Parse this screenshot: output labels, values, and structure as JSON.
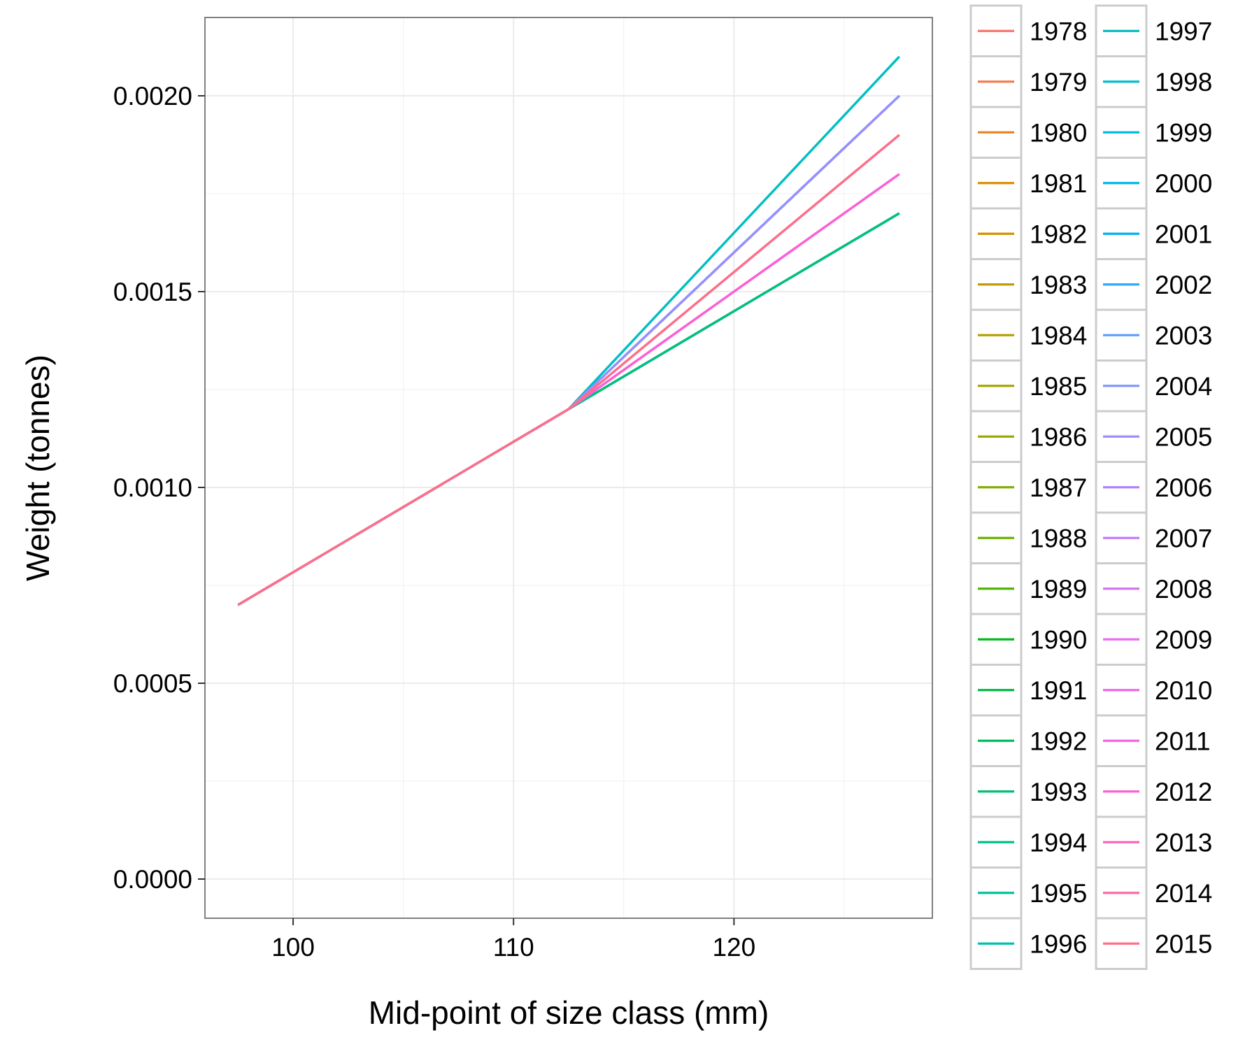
{
  "chart_data": {
    "type": "line",
    "title": "",
    "xlabel": "Mid-point of size class (mm)",
    "ylabel": "Weight (tonnes)",
    "xlim": [
      96,
      129
    ],
    "ylim": [
      -0.0001,
      0.0022
    ],
    "xticks": [
      100,
      110,
      120
    ],
    "xtick_labels": [
      "100",
      "110",
      "120"
    ],
    "yticks": [
      0.0,
      0.0005,
      0.001,
      0.0015,
      0.002
    ],
    "ytick_labels": [
      "0.0000",
      "0.0005",
      "0.0010",
      "0.0015",
      "0.0020"
    ],
    "grid": true,
    "legend_position": "right, two columns",
    "series": [
      {
        "name": "1978",
        "color": "#F8766D",
        "x": [
          97.5,
          112.5,
          127.5
        ],
        "y": [
          0.0007,
          0.0012,
          0.0019
        ]
      },
      {
        "name": "1979",
        "color": "#F17D50",
        "x": [
          97.5,
          112.5,
          127.5
        ],
        "y": [
          0.0007,
          0.0012,
          0.0017
        ]
      },
      {
        "name": "1980",
        "color": "#E98428",
        "x": [
          97.5,
          112.5,
          127.5
        ],
        "y": [
          0.0007,
          0.0012,
          0.0017
        ]
      },
      {
        "name": "1981",
        "color": "#DF8B00",
        "x": [
          97.5,
          112.5,
          127.5
        ],
        "y": [
          0.0007,
          0.0012,
          0.0017
        ]
      },
      {
        "name": "1982",
        "color": "#D39200",
        "x": [
          97.5,
          112.5,
          127.5
        ],
        "y": [
          0.0007,
          0.0012,
          0.0017
        ]
      },
      {
        "name": "1983",
        "color": "#C69800",
        "x": [
          97.5,
          112.5,
          127.5
        ],
        "y": [
          0.0007,
          0.0012,
          0.0017
        ]
      },
      {
        "name": "1984",
        "color": "#B79F00",
        "x": [
          97.5,
          112.5,
          127.5
        ],
        "y": [
          0.0007,
          0.0012,
          0.0017
        ]
      },
      {
        "name": "1985",
        "color": "#A7A400",
        "x": [
          97.5,
          112.5,
          127.5
        ],
        "y": [
          0.0007,
          0.0012,
          0.0017
        ]
      },
      {
        "name": "1986",
        "color": "#96A900",
        "x": [
          97.5,
          112.5,
          127.5
        ],
        "y": [
          0.0007,
          0.0012,
          0.0017
        ]
      },
      {
        "name": "1987",
        "color": "#82AD00",
        "x": [
          97.5,
          112.5,
          127.5
        ],
        "y": [
          0.0007,
          0.0012,
          0.0017
        ]
      },
      {
        "name": "1988",
        "color": "#6BB100",
        "x": [
          97.5,
          112.5,
          127.5
        ],
        "y": [
          0.0007,
          0.0012,
          0.0017
        ]
      },
      {
        "name": "1989",
        "color": "#4DB400",
        "x": [
          97.5,
          112.5,
          127.5
        ],
        "y": [
          0.0007,
          0.0012,
          0.0017
        ]
      },
      {
        "name": "1990",
        "color": "#00B81F",
        "x": [
          97.5,
          112.5,
          127.5
        ],
        "y": [
          0.0007,
          0.0012,
          0.0017
        ]
      },
      {
        "name": "1991",
        "color": "#00BA44",
        "x": [
          97.5,
          112.5,
          127.5
        ],
        "y": [
          0.0007,
          0.0012,
          0.0017
        ]
      },
      {
        "name": "1992",
        "color": "#00BC5E",
        "x": [
          97.5,
          112.5,
          127.5
        ],
        "y": [
          0.0007,
          0.0012,
          0.0017
        ]
      },
      {
        "name": "1993",
        "color": "#00BE75",
        "x": [
          97.5,
          112.5,
          127.5
        ],
        "y": [
          0.0007,
          0.0012,
          0.0017
        ]
      },
      {
        "name": "1994",
        "color": "#00BF8A",
        "x": [
          97.5,
          112.5,
          127.5
        ],
        "y": [
          0.0007,
          0.0012,
          0.0017
        ]
      },
      {
        "name": "1995",
        "color": "#00C09D",
        "x": [
          97.5,
          112.5,
          127.5
        ],
        "y": [
          0.0007,
          0.0012,
          0.0021
        ]
      },
      {
        "name": "1996",
        "color": "#00C0B0",
        "x": [
          97.5,
          112.5,
          127.5
        ],
        "y": [
          0.0007,
          0.0012,
          0.0021
        ]
      },
      {
        "name": "1997",
        "color": "#00BFC2",
        "x": [
          97.5,
          112.5,
          127.5
        ],
        "y": [
          0.0007,
          0.0012,
          0.0021
        ]
      },
      {
        "name": "1998",
        "color": "#00BDD2",
        "x": [
          97.5,
          112.5,
          127.5
        ],
        "y": [
          0.0007,
          0.0012,
          0.002
        ]
      },
      {
        "name": "1999",
        "color": "#00BAE1",
        "x": [
          97.5,
          112.5,
          127.5
        ],
        "y": [
          0.0007,
          0.0012,
          0.002
        ]
      },
      {
        "name": "2000",
        "color": "#00B6EE",
        "x": [
          97.5,
          112.5,
          127.5
        ],
        "y": [
          0.0007,
          0.0012,
          0.002
        ]
      },
      {
        "name": "2001",
        "color": "#00B0F6",
        "x": [
          97.5,
          112.5,
          127.5
        ],
        "y": [
          0.0007,
          0.0012,
          0.002
        ]
      },
      {
        "name": "2002",
        "color": "#2AA9FF",
        "x": [
          97.5,
          112.5,
          127.5
        ],
        "y": [
          0.0007,
          0.0012,
          0.002
        ]
      },
      {
        "name": "2003",
        "color": "#61A0FF",
        "x": [
          97.5,
          112.5,
          127.5
        ],
        "y": [
          0.0007,
          0.0012,
          0.002
        ]
      },
      {
        "name": "2004",
        "color": "#8296FF",
        "x": [
          97.5,
          112.5,
          127.5
        ],
        "y": [
          0.0007,
          0.0012,
          0.002
        ]
      },
      {
        "name": "2005",
        "color": "#9C8DFF",
        "x": [
          97.5,
          112.5,
          127.5
        ],
        "y": [
          0.0007,
          0.0012,
          0.002
        ]
      },
      {
        "name": "2006",
        "color": "#B084F7",
        "x": [
          97.5,
          112.5,
          127.5
        ],
        "y": [
          0.0007,
          0.0012,
          0.0018
        ]
      },
      {
        "name": "2007",
        "color": "#C17BFF",
        "x": [
          97.5,
          112.5,
          127.5
        ],
        "y": [
          0.0007,
          0.0012,
          0.0018
        ]
      },
      {
        "name": "2008",
        "color": "#D074F1",
        "x": [
          97.5,
          112.5,
          127.5
        ],
        "y": [
          0.0007,
          0.0012,
          0.0018
        ]
      },
      {
        "name": "2009",
        "color": "#E76BF3",
        "x": [
          97.5,
          112.5,
          127.5
        ],
        "y": [
          0.0007,
          0.0012,
          0.0018
        ]
      },
      {
        "name": "2010",
        "color": "#F066EA",
        "x": [
          97.5,
          112.5,
          127.5
        ],
        "y": [
          0.0007,
          0.0012,
          0.0018
        ]
      },
      {
        "name": "2011",
        "color": "#F863DF",
        "x": [
          97.5,
          112.5,
          127.5
        ],
        "y": [
          0.0007,
          0.0012,
          0.0018
        ]
      },
      {
        "name": "2012",
        "color": "#FC61D3",
        "x": [
          97.5,
          112.5,
          127.5
        ],
        "y": [
          0.0007,
          0.0012,
          0.0018
        ]
      },
      {
        "name": "2013",
        "color": "#FF62BC",
        "x": [
          97.5,
          112.5,
          127.5
        ],
        "y": [
          0.0007,
          0.0012,
          0.0019
        ]
      },
      {
        "name": "2014",
        "color": "#FF67A4",
        "x": [
          97.5,
          112.5,
          127.5
        ],
        "y": [
          0.0007,
          0.0012,
          0.0019
        ]
      },
      {
        "name": "2015",
        "color": "#FD6F87",
        "x": [
          97.5,
          112.5,
          127.5
        ],
        "y": [
          0.0007,
          0.0012,
          0.0019
        ]
      }
    ]
  }
}
